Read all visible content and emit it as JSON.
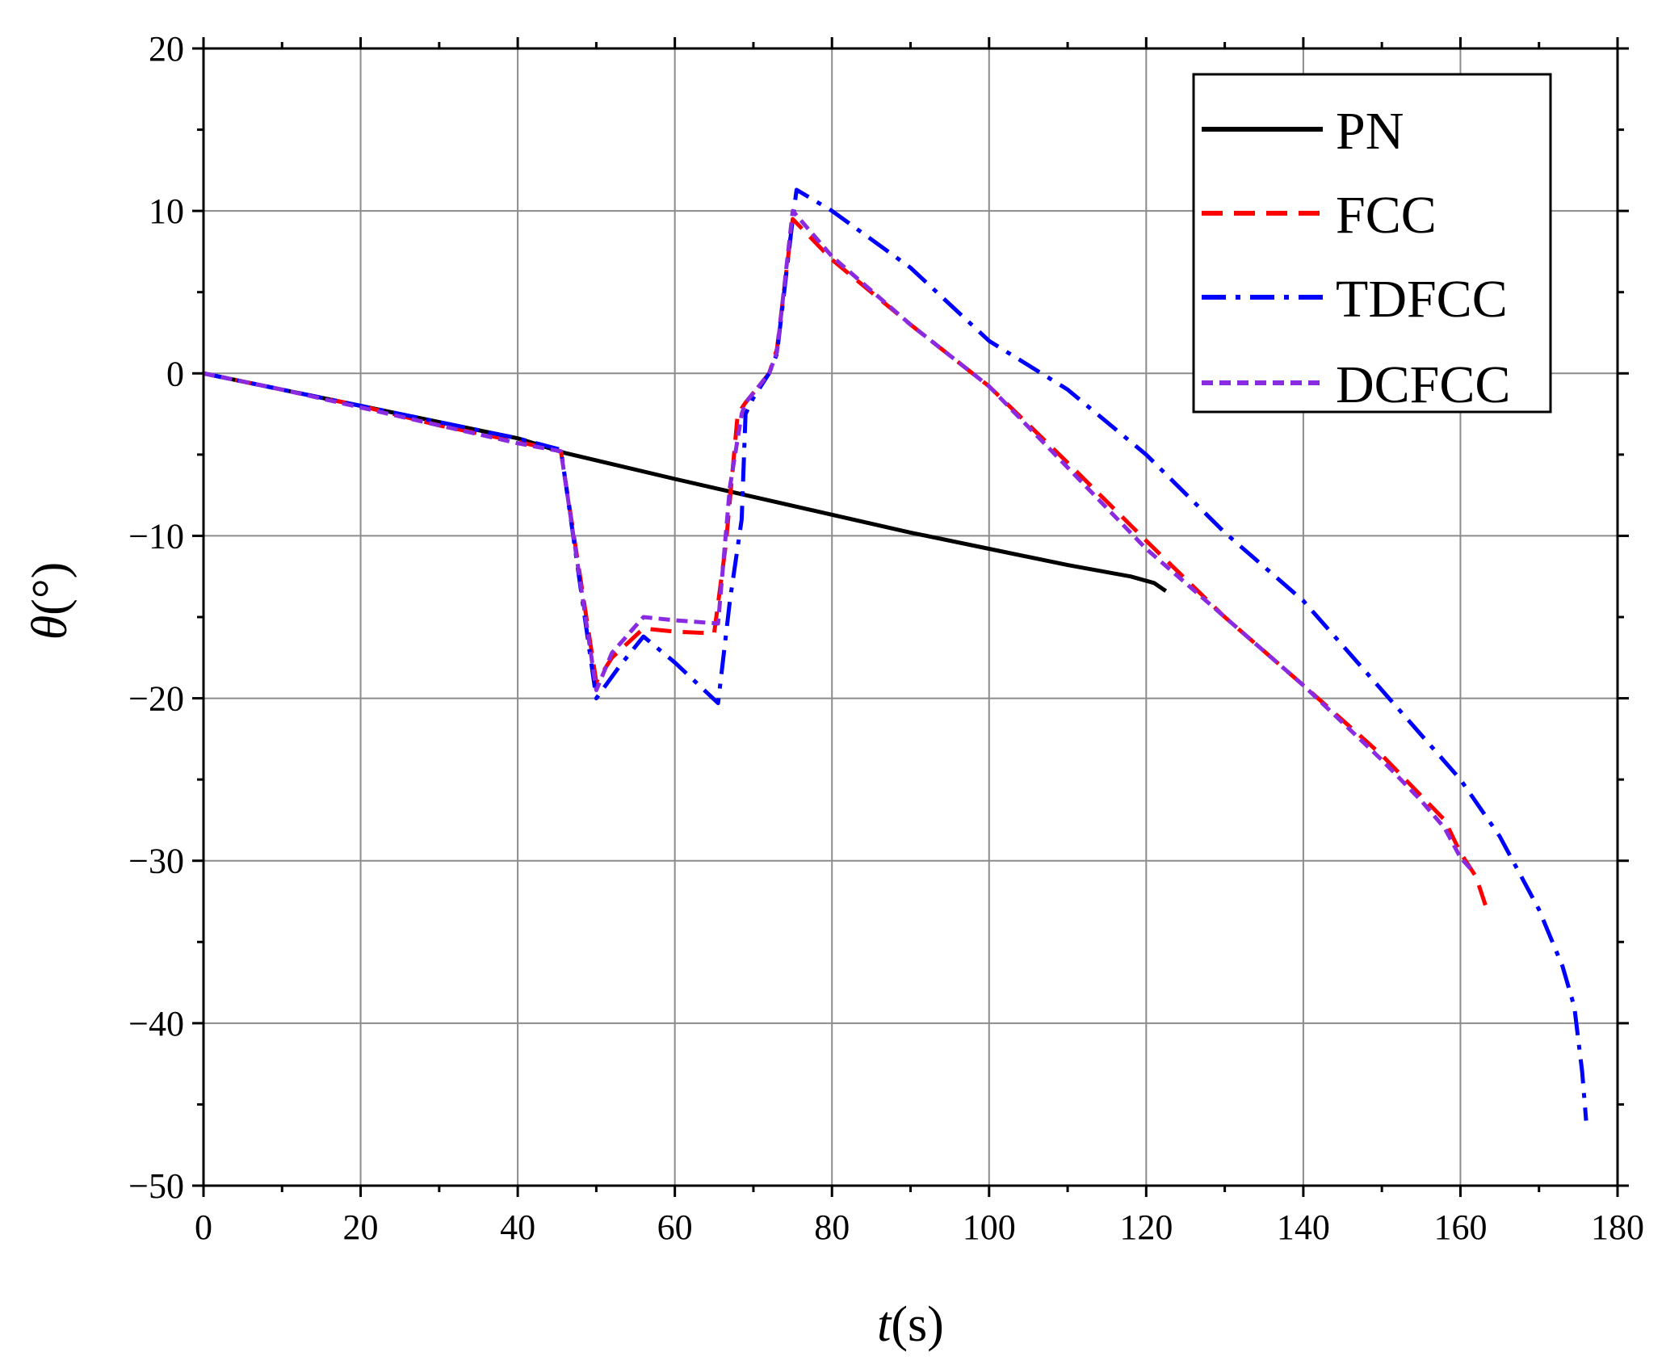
{
  "chart_data": {
    "type": "line",
    "title": "",
    "xlabel": {
      "symbol": "t",
      "unit": "(s)"
    },
    "ylabel": {
      "symbol": "θ",
      "unit": "(°)"
    },
    "xlim": [
      0,
      180
    ],
    "ylim": [
      -50,
      20
    ],
    "xticks": [
      0,
      20,
      40,
      60,
      80,
      100,
      120,
      140,
      160,
      180
    ],
    "yticks": [
      20,
      10,
      0,
      -10,
      -20,
      -30,
      -40,
      -50
    ],
    "ytick_labels": [
      "20",
      "10",
      "0",
      "−10",
      "−20",
      "−30",
      "−40",
      "−50"
    ],
    "grid": true,
    "legend_position": "top-right",
    "series": [
      {
        "name": "PN",
        "color": "#000000",
        "dash": "solid",
        "x": [
          0,
          10,
          20,
          30,
          40,
          46,
          60,
          70,
          80,
          90,
          100,
          110,
          118,
          121,
          122.5
        ],
        "y": [
          0,
          -1.0,
          -2.0,
          -3.0,
          -4.0,
          -4.9,
          -6.5,
          -7.6,
          -8.7,
          -9.8,
          -10.8,
          -11.8,
          -12.5,
          -12.9,
          -13.4
        ]
      },
      {
        "name": "FCC",
        "color": "#ff0000",
        "dash": "long-dash",
        "x": [
          0,
          10,
          20,
          30,
          40,
          45.5,
          50,
          52,
          56,
          60,
          65,
          66.5,
          68,
          69,
          72,
          73,
          75,
          80,
          90,
          100,
          110,
          120,
          130,
          140,
          150,
          155,
          158,
          160,
          162,
          163.5
        ],
        "y": [
          0,
          -1.0,
          -2.0,
          -3.2,
          -4.2,
          -4.8,
          -19.0,
          -17.5,
          -15.7,
          -15.9,
          -16.0,
          -10.5,
          -2.5,
          -1.8,
          0.0,
          1.5,
          9.5,
          7.0,
          3.0,
          -0.8,
          -5.5,
          -10.3,
          -15.0,
          -19.2,
          -23.5,
          -26.0,
          -27.5,
          -29.5,
          -31.0,
          -33.2
        ]
      },
      {
        "name": "TDFCC",
        "color": "#0000ff",
        "dash": "dash-dot",
        "x": [
          0,
          10,
          20,
          30,
          40,
          45.5,
          50,
          53,
          56,
          60,
          65.5,
          67,
          68.5,
          69,
          70,
          72,
          73,
          75,
          75.5,
          80,
          90,
          100,
          110,
          120,
          130,
          140,
          150,
          160,
          165,
          170,
          173,
          174.5,
          175.5,
          176
        ],
        "y": [
          0,
          -1.0,
          -2.0,
          -3.0,
          -4.0,
          -4.7,
          -20.0,
          -18.0,
          -16.2,
          -17.8,
          -20.3,
          -14.0,
          -9.0,
          -2.5,
          -1.5,
          0.0,
          1.2,
          9.5,
          11.3,
          10.0,
          6.5,
          2.0,
          -1.0,
          -5.0,
          -9.8,
          -14.0,
          -19.5,
          -25.0,
          -28.5,
          -33.0,
          -36.5,
          -39.0,
          -43.0,
          -46.0
        ]
      },
      {
        "name": "DCFCC",
        "color": "#8a2be2",
        "dash": "short-dash",
        "x": [
          0,
          10,
          20,
          30,
          40,
          45.5,
          50,
          52,
          56,
          60,
          65.5,
          67,
          68.5,
          69,
          72,
          73,
          75,
          80,
          90,
          100,
          110,
          120,
          130,
          140,
          150,
          155,
          158,
          160,
          161.5
        ],
        "y": [
          0,
          -1.0,
          -2.1,
          -3.2,
          -4.3,
          -4.8,
          -19.5,
          -17.2,
          -15.0,
          -15.2,
          -15.4,
          -7.0,
          -2.5,
          -1.8,
          0.0,
          1.3,
          10.0,
          7.2,
          3.0,
          -0.8,
          -5.8,
          -10.8,
          -15.0,
          -19.2,
          -23.8,
          -26.3,
          -28.0,
          -29.8,
          -30.6
        ]
      }
    ]
  }
}
